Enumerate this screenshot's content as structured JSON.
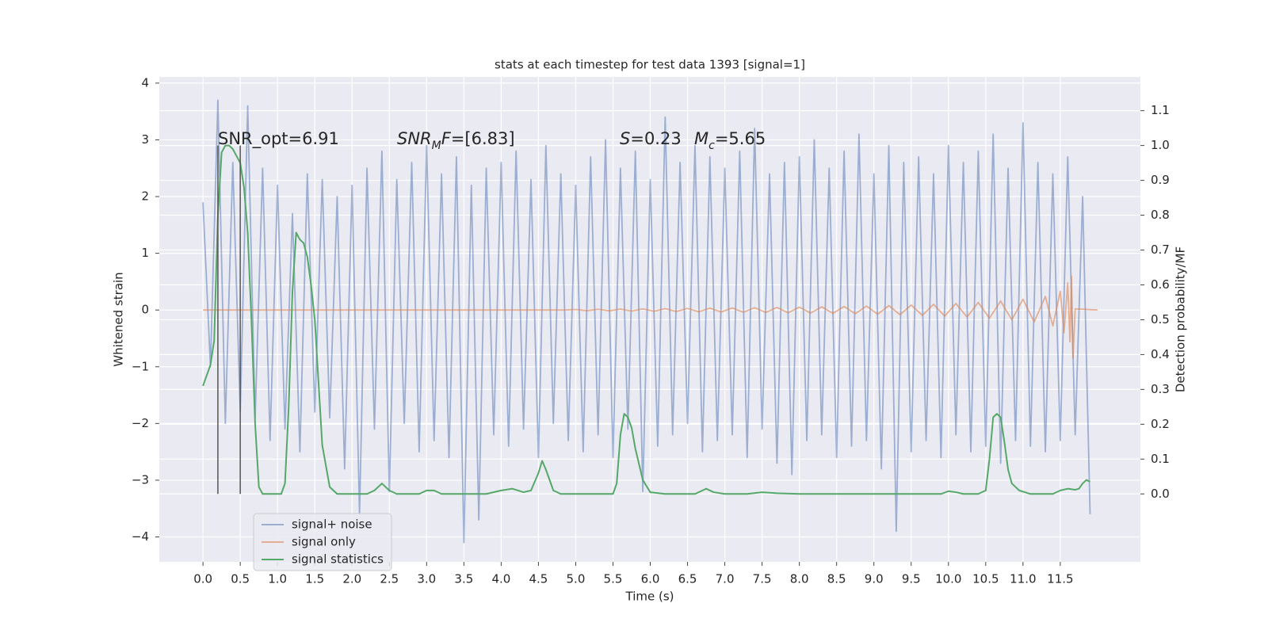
{
  "chart_data": {
    "type": "line",
    "title": "stats at each timestep for test data 1393 [signal=1]",
    "xlabel": "Time (s)",
    "ylabel": "Whitened strain",
    "y2label": "Detection probability/MF",
    "xlim": [
      -0.586,
      12.575
    ],
    "ylim": [
      -4.44,
      4.11
    ],
    "y2lim": [
      -0.195,
      1.197
    ],
    "xticks": [
      {
        "value": 0,
        "label": "0.0"
      },
      0.5,
      {
        "value": 1,
        "label": "1.0"
      },
      1.5,
      {
        "value": 2,
        "label": "2.0"
      },
      2.5,
      {
        "value": 3,
        "label": "3.0"
      },
      3.5,
      {
        "value": 4,
        "label": "4.0"
      },
      4.5,
      {
        "value": 5,
        "label": "5.0"
      },
      5.5,
      {
        "value": 6,
        "label": "6.0"
      },
      6.5,
      {
        "value": 7,
        "label": "7.0"
      },
      7.5,
      {
        "value": 8,
        "label": "8.0"
      },
      8.5,
      {
        "value": 9,
        "label": "9.0"
      },
      9.5,
      {
        "value": 10,
        "label": "10.0"
      },
      10.5,
      {
        "value": 11,
        "label": "11.0"
      },
      11.5
    ],
    "yticks": [
      4,
      3,
      2,
      1,
      0,
      {
        "value": -1,
        "label": "−1"
      },
      {
        "value": -2,
        "label": "−2"
      },
      {
        "value": -3,
        "label": "−3"
      },
      {
        "value": -4,
        "label": "−4"
      }
    ],
    "y2ticks": [
      {
        "value": 0,
        "label": "0.0"
      },
      0.1,
      0.2,
      0.3,
      0.4,
      0.5,
      0.6,
      0.7,
      0.8,
      0.9,
      {
        "value": 1,
        "label": "1.0"
      },
      1.1
    ],
    "grid": true,
    "legend": "lower left",
    "series": [
      {
        "name": "signal+ noise",
        "color": "#4c72b0",
        "alpha": 0.5,
        "x": [
          0,
          0.1,
          0.2,
          0.3,
          0.4,
          0.5,
          0.6,
          0.7,
          0.8,
          0.9,
          1,
          1.1,
          1.2,
          1.3,
          1.4,
          1.5,
          1.6,
          1.7,
          1.8,
          1.9,
          2,
          2.1,
          2.2,
          2.3,
          2.4,
          2.5,
          2.6,
          2.7,
          2.8,
          2.9,
          3,
          3.1,
          3.2,
          3.3,
          3.4,
          3.5,
          3.6,
          3.7,
          3.8,
          3.9,
          4,
          4.1,
          4.2,
          4.3,
          4.4,
          4.5,
          4.6,
          4.7,
          4.8,
          4.9,
          5,
          5.1,
          5.2,
          5.3,
          5.4,
          5.5,
          5.6,
          5.7,
          5.8,
          5.9,
          6,
          6.1,
          6.2,
          6.3,
          6.4,
          6.5,
          6.6,
          6.7,
          6.8,
          6.9,
          7,
          7.1,
          7.2,
          7.3,
          7.4,
          7.5,
          7.6,
          7.7,
          7.8,
          7.9,
          8,
          8.1,
          8.2,
          8.3,
          8.4,
          8.5,
          8.6,
          8.7,
          8.8,
          8.9,
          9,
          9.1,
          9.2,
          9.3,
          9.4,
          9.5,
          9.6,
          9.7,
          9.8,
          9.9,
          10,
          10.1,
          10.2,
          10.3,
          10.4,
          10.5,
          10.6,
          10.7,
          10.8,
          10.9,
          11,
          11.1,
          11.2,
          11.3,
          11.4,
          11.5,
          11.6,
          11.7,
          11.8,
          11.9
        ],
        "values": [
          1.9,
          -1.0,
          3.7,
          -2.0,
          2.6,
          -1.8,
          3.6,
          -1.9,
          2.5,
          -2.3,
          2.2,
          -2.1,
          1.7,
          -2.5,
          2.4,
          -1.8,
          2.3,
          -1.9,
          2.0,
          -2.8,
          2.2,
          -3.6,
          2.5,
          -2.1,
          2.8,
          -3.2,
          2.3,
          -2.0,
          2.6,
          -2.5,
          2.9,
          -2.3,
          2.4,
          -2.6,
          2.7,
          -4.1,
          2.2,
          -3.7,
          2.5,
          -2.2,
          2.6,
          -2.4,
          2.8,
          -2.1,
          2.3,
          -2.6,
          2.9,
          -2.0,
          2.4,
          -2.3,
          2.2,
          -2.5,
          2.7,
          -2.2,
          3.0,
          -2.6,
          2.5,
          -2.1,
          2.8,
          -3.2,
          2.3,
          -2.4,
          3.4,
          -2.2,
          2.6,
          -2.0,
          2.9,
          -2.5,
          2.7,
          -2.3,
          2.5,
          -2.2,
          2.8,
          -2.6,
          3.2,
          -2.1,
          2.4,
          -2.7,
          2.6,
          -2.9,
          2.7,
          -2.3,
          3.0,
          -2.2,
          2.5,
          -2.6,
          2.8,
          -2.4,
          3.1,
          -2.3,
          2.4,
          -2.8,
          2.9,
          -3.9,
          2.6,
          -2.5,
          2.7,
          -2.3,
          2.4,
          -2.6,
          2.9,
          -2.2,
          2.6,
          -2.5,
          2.8,
          -2.4,
          3.1,
          -2.7,
          2.5,
          -2.3,
          3.3,
          -2.4,
          2.6,
          -2.5,
          2.4,
          -2.3,
          2.7,
          -2.2,
          2.0,
          -3.6
        ]
      },
      {
        "name": "signal only",
        "color": "#dd8452",
        "alpha": 0.6,
        "x": [
          0,
          4.85,
          5.0,
          5.15,
          5.3,
          5.45,
          5.6,
          5.75,
          5.9,
          6.05,
          6.2,
          6.35,
          6.5,
          6.65,
          6.8,
          6.95,
          7.1,
          7.25,
          7.4,
          7.55,
          7.7,
          7.85,
          8.0,
          8.15,
          8.3,
          8.45,
          8.6,
          8.75,
          8.9,
          9.05,
          9.2,
          9.35,
          9.5,
          9.65,
          9.8,
          9.95,
          10.1,
          10.25,
          10.4,
          10.55,
          10.7,
          10.85,
          11.0,
          11.15,
          11.3,
          11.4,
          11.5,
          11.55,
          11.6,
          11.63,
          11.65,
          11.67,
          11.7,
          12.0
        ],
        "values": [
          0,
          0,
          0.01,
          -0.012,
          0.013,
          -0.014,
          0.016,
          -0.018,
          0.02,
          -0.022,
          0.024,
          -0.026,
          0.028,
          -0.03,
          0.032,
          -0.034,
          0.036,
          -0.038,
          0.04,
          -0.042,
          0.045,
          -0.048,
          0.05,
          -0.053,
          0.056,
          -0.059,
          0.062,
          -0.066,
          0.07,
          -0.074,
          0.078,
          -0.083,
          0.088,
          -0.094,
          0.1,
          -0.107,
          0.115,
          -0.124,
          0.134,
          -0.145,
          0.158,
          -0.173,
          0.19,
          -0.21,
          0.24,
          -0.28,
          0.33,
          -0.4,
          0.48,
          -0.56,
          0.6,
          -0.85,
          0.02,
          0
        ]
      },
      {
        "name": "signal statistics",
        "color": "#55a868",
        "alpha": 1,
        "axis": "y2",
        "x": [
          0.0,
          0.1,
          0.15,
          0.2,
          0.25,
          0.3,
          0.35,
          0.4,
          0.45,
          0.5,
          0.55,
          0.6,
          0.65,
          0.7,
          0.75,
          0.8,
          0.85,
          0.95,
          1.05,
          1.1,
          1.15,
          1.2,
          1.25,
          1.3,
          1.35,
          1.4,
          1.45,
          1.5,
          1.55,
          1.6,
          1.7,
          1.8,
          2.0,
          2.2,
          2.3,
          2.4,
          2.5,
          2.6,
          2.9,
          3.0,
          3.1,
          3.2,
          3.5,
          3.8,
          4.0,
          4.15,
          4.3,
          4.4,
          4.5,
          4.55,
          4.6,
          4.7,
          4.8,
          5.0,
          5.3,
          5.5,
          5.55,
          5.6,
          5.65,
          5.7,
          5.75,
          5.8,
          5.9,
          6.0,
          6.2,
          6.6,
          6.7,
          6.75,
          6.85,
          7.0,
          7.3,
          7.5,
          7.7,
          8.0,
          8.5,
          9.0,
          9.5,
          9.9,
          10.0,
          10.1,
          10.2,
          10.4,
          10.5,
          10.55,
          10.6,
          10.65,
          10.7,
          10.75,
          10.8,
          10.85,
          10.95,
          11.1,
          11.4,
          11.5,
          11.6,
          11.7,
          11.75,
          11.8,
          11.85,
          11.9
        ],
        "values": [
          0.31,
          0.37,
          0.44,
          0.8,
          0.98,
          1.0,
          1.0,
          0.99,
          0.97,
          0.95,
          0.88,
          0.75,
          0.5,
          0.2,
          0.02,
          0.0,
          0.0,
          0.0,
          0.0,
          0.03,
          0.25,
          0.58,
          0.75,
          0.73,
          0.72,
          0.68,
          0.6,
          0.5,
          0.32,
          0.14,
          0.02,
          0.0,
          0.0,
          0.0,
          0.01,
          0.03,
          0.01,
          0.0,
          0.0,
          0.01,
          0.01,
          0.0,
          0.0,
          0.0,
          0.01,
          0.015,
          0.005,
          0.01,
          0.06,
          0.095,
          0.07,
          0.01,
          0.0,
          0.0,
          0.0,
          0.0,
          0.03,
          0.17,
          0.23,
          0.22,
          0.19,
          0.13,
          0.04,
          0.005,
          0.0,
          0.0,
          0.01,
          0.015,
          0.005,
          0.0,
          0.0,
          0.005,
          0.002,
          0.0,
          0.0,
          0.0,
          0.0,
          0.0,
          0.008,
          0.005,
          0.0,
          0.0,
          0.01,
          0.1,
          0.22,
          0.23,
          0.22,
          0.15,
          0.07,
          0.03,
          0.01,
          0.0,
          0.0,
          0.01,
          0.015,
          0.012,
          0.015,
          0.03,
          0.04,
          0.035
        ]
      }
    ],
    "vlines": {
      "x": [
        0.2,
        0.5
      ],
      "y2": [
        0,
        1
      ],
      "color": "#555555"
    },
    "annotations": [
      [
        {
          "text": "SNR_opt=6.91"
        }
      ],
      [
        {
          "text": "SNR",
          "italic": true
        },
        {
          "text": "M",
          "italic": true,
          "sub": true
        },
        {
          "text": "F",
          "italic": true
        },
        {
          "text": "=[6.83]"
        }
      ],
      [
        {
          "text": "S",
          "italic": true
        },
        {
          "text": "=0.23"
        }
      ],
      [
        {
          "text": "M",
          "italic": true
        },
        {
          "text": "c",
          "italic": true,
          "sub": true
        },
        {
          "text": "=5.65"
        }
      ]
    ]
  }
}
